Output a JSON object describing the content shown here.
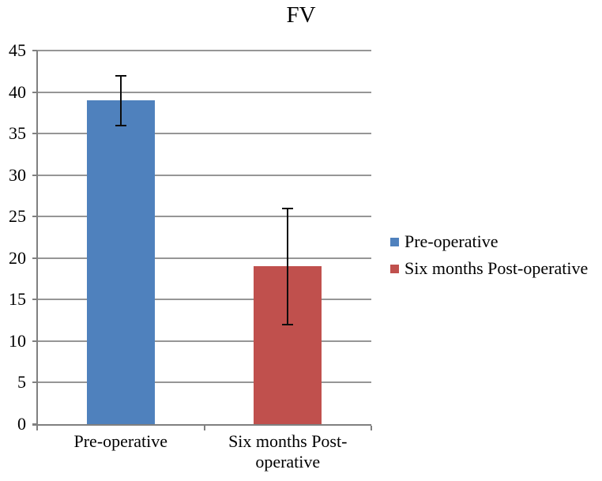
{
  "chart_data": {
    "type": "bar",
    "title": "FV",
    "categories": [
      "Pre-operative",
      "Six months Post-operative"
    ],
    "series": [
      {
        "name": "FV",
        "values": [
          39,
          19
        ],
        "colors": [
          "#4F81BD",
          "#C0504D"
        ],
        "error_bars": [
          {
            "low": 36,
            "high": 42
          },
          {
            "low": 12,
            "high": 26
          }
        ]
      }
    ],
    "xlabel": "",
    "ylabel": "",
    "ylim": [
      0,
      45
    ],
    "yticks": [
      0,
      5,
      10,
      15,
      20,
      25,
      30,
      35,
      40,
      45
    ],
    "grid": true,
    "legend_position": "right",
    "legend": [
      {
        "label": "Pre-operative",
        "color": "#4F81BD"
      },
      {
        "label": "Six months Post-operative",
        "color": "#C0504D"
      }
    ],
    "colors": {
      "gridline": "#969696",
      "axis": "#808080",
      "error_bar": "#0d0d0d",
      "background": "#FFFFFF",
      "text": "#000000"
    }
  }
}
